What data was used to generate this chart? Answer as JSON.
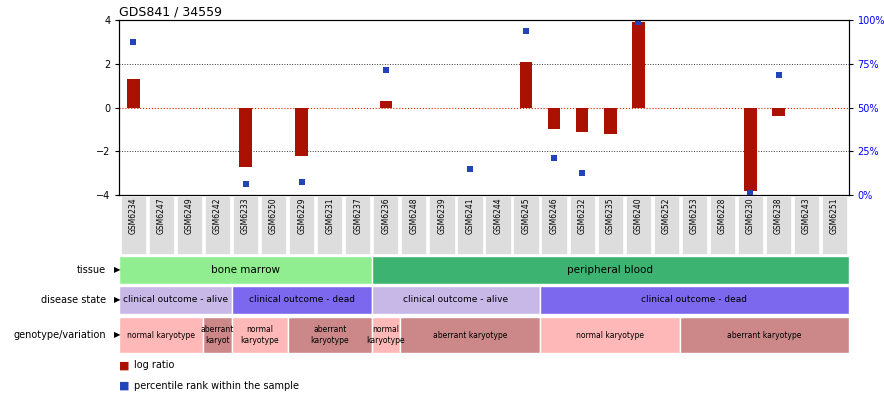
{
  "title": "GDS841 / 34559",
  "samples": [
    "GSM6234",
    "GSM6247",
    "GSM6249",
    "GSM6242",
    "GSM6233",
    "GSM6250",
    "GSM6229",
    "GSM6231",
    "GSM6237",
    "GSM6236",
    "GSM6248",
    "GSM6239",
    "GSM6241",
    "GSM6244",
    "GSM6245",
    "GSM6246",
    "GSM6232",
    "GSM6235",
    "GSM6240",
    "GSM6252",
    "GSM6253",
    "GSM6228",
    "GSM6230",
    "GSM6238",
    "GSM6243",
    "GSM6251"
  ],
  "log_ratio": [
    1.3,
    0.0,
    0.0,
    0.0,
    -2.7,
    0.0,
    -2.2,
    0.0,
    0.0,
    0.3,
    0.0,
    0.0,
    0.0,
    0.0,
    2.1,
    -1.0,
    -1.1,
    -1.2,
    3.9,
    0.0,
    0.0,
    0.0,
    -3.8,
    -0.4,
    0.0,
    0.0
  ],
  "percentile_raw": [
    3.0,
    null,
    null,
    null,
    -3.5,
    null,
    -3.4,
    null,
    null,
    1.7,
    null,
    null,
    -2.8,
    null,
    3.5,
    -2.3,
    -3.0,
    null,
    3.9,
    null,
    null,
    null,
    -3.9,
    1.5,
    null,
    null
  ],
  "ylim": [
    -4,
    4
  ],
  "tissue_groups": [
    {
      "label": "bone marrow",
      "start": 0,
      "end": 9,
      "color": "#90EE90"
    },
    {
      "label": "peripheral blood",
      "start": 9,
      "end": 26,
      "color": "#3CB371"
    }
  ],
  "disease_groups": [
    {
      "label": "clinical outcome - alive",
      "start": 0,
      "end": 4,
      "color": "#C8B8E8"
    },
    {
      "label": "clinical outcome - dead",
      "start": 4,
      "end": 9,
      "color": "#7B68EE"
    },
    {
      "label": "clinical outcome - alive",
      "start": 9,
      "end": 15,
      "color": "#C8B8E8"
    },
    {
      "label": "clinical outcome - dead",
      "start": 15,
      "end": 26,
      "color": "#7B68EE"
    }
  ],
  "geno_groups": [
    {
      "label": "normal karyotype",
      "start": 0,
      "end": 3,
      "color": "#FFB8B8"
    },
    {
      "label": "aberrant\nkaryot",
      "start": 3,
      "end": 4,
      "color": "#CC8888"
    },
    {
      "label": "normal\nkaryotype",
      "start": 4,
      "end": 6,
      "color": "#FFB8B8"
    },
    {
      "label": "aberrant\nkaryotype",
      "start": 6,
      "end": 9,
      "color": "#CC8888"
    },
    {
      "label": "normal\nkaryotype",
      "start": 9,
      "end": 10,
      "color": "#FFB8B8"
    },
    {
      "label": "aberrant karyotype",
      "start": 10,
      "end": 15,
      "color": "#CC8888"
    },
    {
      "label": "normal karyotype",
      "start": 15,
      "end": 20,
      "color": "#FFB8B8"
    },
    {
      "label": "aberrant karyotype",
      "start": 20,
      "end": 26,
      "color": "#CC8888"
    }
  ],
  "bar_color": "#AA1100",
  "dot_color": "#2244BB",
  "ref_line_color": "#DD2200",
  "grid_line_color": "#333333",
  "bg_color": "#FFFFFF",
  "tick_bg": "#DDDDDD"
}
